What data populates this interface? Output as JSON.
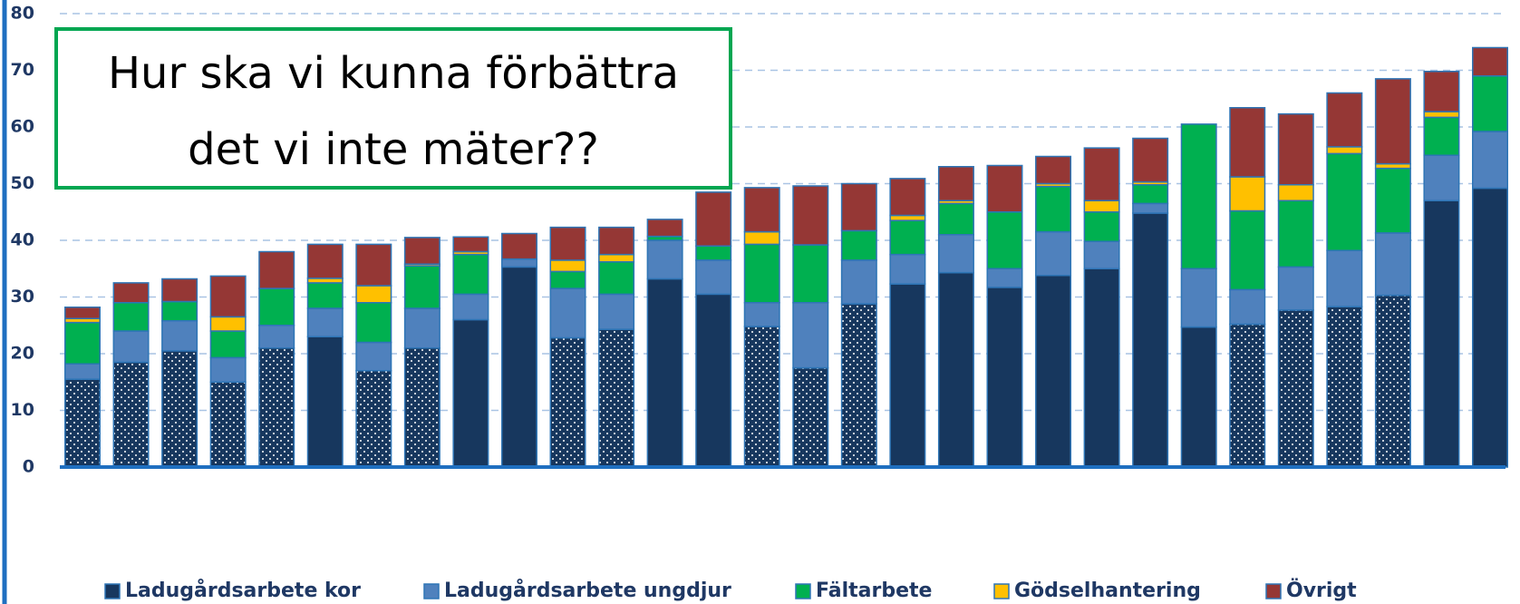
{
  "chart_data": {
    "type": "stacked_bar",
    "annotation": [
      "Hur ska vi kunna förbättra",
      "det vi inte mäter??"
    ],
    "categories": [
      null,
      null,
      null,
      null,
      null,
      null,
      null,
      null,
      null,
      null,
      null,
      null,
      null,
      null,
      null,
      null,
      null,
      null,
      null,
      null,
      null,
      null,
      null,
      null,
      null,
      null,
      null,
      null,
      null,
      null
    ],
    "series": [
      {
        "name": "Ladugårdsarbete kor",
        "color": "#17375e",
        "values": [
          15.5,
          18.5,
          20.5,
          15,
          21,
          23,
          17,
          21,
          26,
          35.3,
          22.8,
          24.3,
          33.2,
          30.5,
          24.8,
          17.5,
          28.8,
          32.3,
          34.3,
          31.7,
          33.8,
          35,
          44.8,
          24.7,
          25.2,
          27.7,
          28.3,
          30.3,
          47,
          49.2
        ]
      },
      {
        "name": "Ladugårdsarbete ungdjur",
        "color": "#4f81bd",
        "values": [
          2.7,
          5.5,
          5.3,
          4.3,
          4,
          5,
          5,
          7,
          4.5,
          1.4,
          8.7,
          6.2,
          6.8,
          6,
          4.2,
          11.5,
          7.7,
          5.2,
          6.7,
          3.3,
          7.7,
          4.8,
          1.7,
          10.3,
          6.1,
          7.6,
          9.9,
          11,
          8,
          10
        ]
      },
      {
        "name": "Fältarbete",
        "color": "#00b050",
        "values": [
          7.3,
          5,
          3.4,
          4.7,
          6.5,
          4.5,
          7,
          7.5,
          7,
          0,
          3,
          5.7,
          0.7,
          2.5,
          10.3,
          10.2,
          5.2,
          6,
          5.5,
          10,
          8,
          5.2,
          3.3,
          25.5,
          13.9,
          11.7,
          17.1,
          11.4,
          6.7,
          9.8
        ]
      },
      {
        "name": "Gödselhantering",
        "color": "#ffc000",
        "values": [
          0.7,
          0,
          0,
          2.5,
          0,
          0.8,
          3,
          0.3,
          0.5,
          0,
          2,
          1.3,
          0,
          0,
          2.2,
          0,
          0,
          0.9,
          0.5,
          0,
          0.5,
          2,
          0.5,
          0,
          6,
          2.8,
          1.2,
          0.8,
          1,
          0
        ]
      },
      {
        "name": "Övrigt",
        "color": "#953735",
        "values": [
          2,
          3.5,
          4,
          7.2,
          6.5,
          6,
          7.3,
          4.7,
          2.6,
          4.5,
          5.8,
          4.8,
          3,
          9.5,
          7.8,
          10.4,
          8.3,
          6.5,
          6,
          8.2,
          4.8,
          9.3,
          7.7,
          0,
          12.2,
          12.5,
          9.5,
          15,
          7.1,
          5
        ]
      }
    ],
    "dotted": [
      true,
      true,
      true,
      true,
      true,
      false,
      true,
      true,
      false,
      false,
      true,
      true,
      false,
      false,
      true,
      true,
      true,
      false,
      false,
      false,
      false,
      false,
      false,
      false,
      true,
      true,
      true,
      true,
      false,
      false
    ],
    "ylim": [
      0,
      80
    ],
    "yticks": [
      0,
      10,
      20,
      30,
      40,
      50,
      60,
      70,
      80
    ],
    "grid": true,
    "legend": "bottom"
  }
}
